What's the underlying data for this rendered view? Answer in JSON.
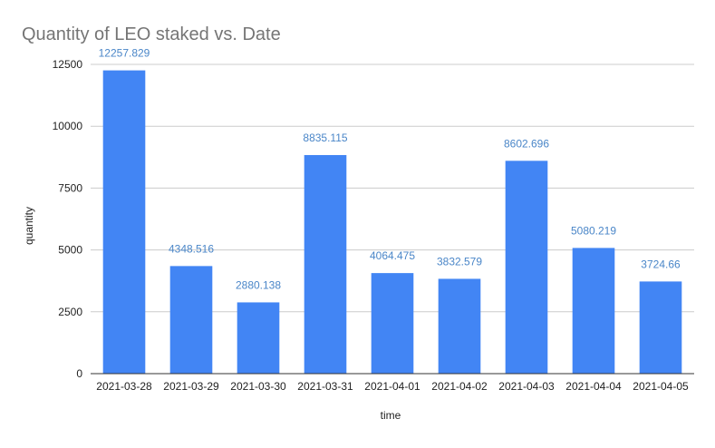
{
  "chart_data": {
    "type": "bar",
    "title": "Quantity of LEO staked vs. Date",
    "xlabel": "time",
    "ylabel": "quantity",
    "categories": [
      "2021-03-28",
      "2021-03-29",
      "2021-03-30",
      "2021-03-31",
      "2021-04-01",
      "2021-04-02",
      "2021-04-03",
      "2021-04-04",
      "2021-04-05"
    ],
    "series": [
      {
        "values": [
          12257.829,
          4348.516,
          2880.138,
          8835.115,
          4064.475,
          3832.579,
          8602.696,
          5080.219,
          3724.66
        ]
      }
    ],
    "data_labels": [
      "12257.829",
      "4348.516",
      "2880.138",
      "8835.115",
      "4064.475",
      "3832.579",
      "8602.696",
      "5080.219",
      "3724.66"
    ],
    "yticks": [
      0,
      2500,
      5000,
      7500,
      10000,
      12500
    ],
    "ylim": [
      0,
      12500
    ],
    "grid": true,
    "legend": "none",
    "colors": {
      "bar": "#4285f4",
      "data_label": "#4a86c8",
      "title": "#757575",
      "gridline": "#cccccc",
      "axis": "#333333",
      "text": "#222222"
    }
  }
}
